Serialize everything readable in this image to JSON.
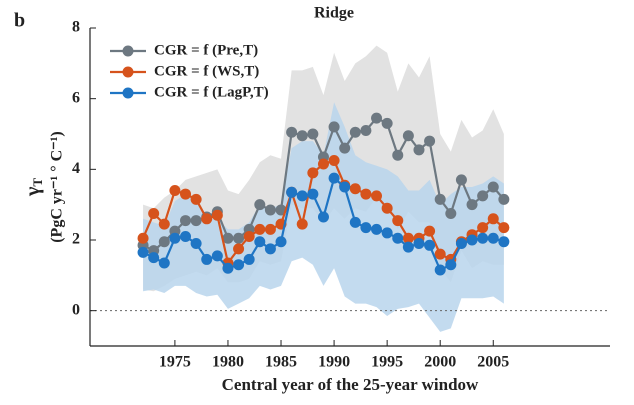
{
  "chart_data": {
    "type": "line",
    "panel_label": "b",
    "title": "Ridge",
    "xlabel": "Central year of the 25-year window",
    "ylabel_symbol": "γ",
    "ylabel_subscript": "T",
    "ylabel_units": "(PgC yr⁻¹ ° C⁻¹)",
    "x": [
      1972,
      1973,
      1974,
      1975,
      1976,
      1977,
      1978,
      1979,
      1980,
      1981,
      1982,
      1983,
      1984,
      1985,
      1986,
      1987,
      1988,
      1989,
      1990,
      1991,
      1992,
      1993,
      1994,
      1995,
      1996,
      1997,
      1998,
      1999,
      2000,
      2001,
      2002,
      2003,
      2004,
      2005,
      2006
    ],
    "xlim": [
      1967,
      2016
    ],
    "xticks": [
      1975,
      1980,
      1985,
      1990,
      1995,
      2000,
      2005
    ],
    "ylim": [
      -1,
      8
    ],
    "yticks": [
      0,
      2,
      4,
      6,
      8
    ],
    "reference_line": 0,
    "legend": "upper left",
    "series": [
      {
        "name": "CGR = f (Pre,T)",
        "color": "#6d7881",
        "band_color": "#e2e2e2",
        "values": [
          1.85,
          1.7,
          1.95,
          2.25,
          2.55,
          2.55,
          2.65,
          2.8,
          2.05,
          2.05,
          2.3,
          3.0,
          2.85,
          2.85,
          5.05,
          4.95,
          5.0,
          4.35,
          5.2,
          4.6,
          5.05,
          5.1,
          5.45,
          5.3,
          4.4,
          4.95,
          4.55,
          4.8,
          3.15,
          2.75,
          3.7,
          3.0,
          3.25,
          3.5,
          3.15
        ],
        "band_upper": [
          3.0,
          2.9,
          3.2,
          3.4,
          3.7,
          3.8,
          3.9,
          4.0,
          3.4,
          3.3,
          3.7,
          4.2,
          4.4,
          4.3,
          6.8,
          6.8,
          6.9,
          6.1,
          7.3,
          6.5,
          7.0,
          7.2,
          7.5,
          7.3,
          6.2,
          7.0,
          6.6,
          7.2,
          5.0,
          4.5,
          5.4,
          4.9,
          5.1,
          5.7,
          5.0
        ],
        "band_lower": [
          0.6,
          0.55,
          0.7,
          0.9,
          1.0,
          1.1,
          1.0,
          1.2,
          0.8,
          0.8,
          0.9,
          1.4,
          1.3,
          1.4,
          3.0,
          2.9,
          2.9,
          2.5,
          2.9,
          2.6,
          2.9,
          2.8,
          3.2,
          3.0,
          2.3,
          2.8,
          2.5,
          2.5,
          1.2,
          0.8,
          1.7,
          1.2,
          1.4,
          1.3,
          1.3
        ]
      },
      {
        "name": "CGR = f (WS,T)",
        "color": "#d6531c",
        "values": [
          2.05,
          2.75,
          2.45,
          3.4,
          3.3,
          3.15,
          2.6,
          2.7,
          1.35,
          1.75,
          2.1,
          2.3,
          2.3,
          2.45,
          3.35,
          2.45,
          3.9,
          4.15,
          4.25,
          3.55,
          3.45,
          3.3,
          3.25,
          2.9,
          2.55,
          2.05,
          2.05,
          2.25,
          1.6,
          1.45,
          1.95,
          2.15,
          2.35,
          2.6,
          2.35
        ]
      },
      {
        "name": "CGR = f (LagP,T)",
        "color": "#1f75c4",
        "band_color": "#b9d5ec",
        "values": [
          1.65,
          1.5,
          1.35,
          2.05,
          2.1,
          1.9,
          1.45,
          1.55,
          1.2,
          1.3,
          1.45,
          1.95,
          1.75,
          1.95,
          3.35,
          3.25,
          3.3,
          2.65,
          3.75,
          3.5,
          2.5,
          2.35,
          2.3,
          2.2,
          2.05,
          1.8,
          1.9,
          1.85,
          1.15,
          1.3,
          1.9,
          2.0,
          2.05,
          2.05,
          1.95
        ],
        "band_upper": [
          2.6,
          2.5,
          2.4,
          3.1,
          3.3,
          3.1,
          2.6,
          2.6,
          2.3,
          2.3,
          2.5,
          3.0,
          2.9,
          3.0,
          4.6,
          4.8,
          4.8,
          4.4,
          5.9,
          5.2,
          4.4,
          4.2,
          4.1,
          4.0,
          3.8,
          3.4,
          3.4,
          3.7,
          3.0,
          3.3,
          3.5,
          3.5,
          3.6,
          3.8,
          3.6
        ],
        "band_lower": [
          0.55,
          0.6,
          0.5,
          0.7,
          0.7,
          0.5,
          0.4,
          0.45,
          0.05,
          0.2,
          0.35,
          0.7,
          0.6,
          0.7,
          1.4,
          1.5,
          1.3,
          0.7,
          1.2,
          0.4,
          0.2,
          0.2,
          0.1,
          -0.15,
          0.05,
          0.1,
          0.2,
          -0.2,
          -0.6,
          -0.5,
          0.35,
          0.35,
          0.35,
          0.4,
          0.2
        ]
      }
    ]
  }
}
